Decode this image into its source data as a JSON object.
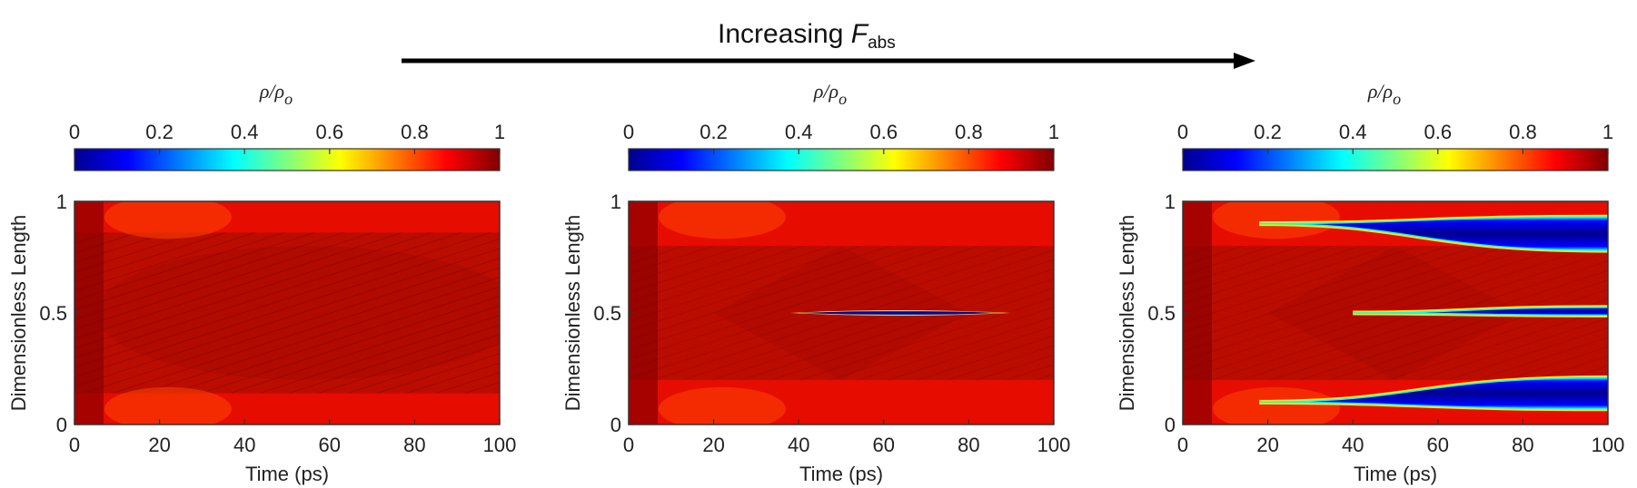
{
  "header": {
    "text": "Increasing ",
    "symbol": "F",
    "subscript": "abs"
  },
  "colorbar": {
    "label_main": "ρ/ρ",
    "label_sub": "o",
    "ticks": [
      "0",
      "0.2",
      "0.4",
      "0.6",
      "0.8",
      "1"
    ],
    "range": [
      0,
      1
    ],
    "stops": [
      "#00008f",
      "#0000ff",
      "#00ffff",
      "#ffff00",
      "#ff0000",
      "#800000"
    ]
  },
  "chart_data": [
    {
      "type": "heatmap",
      "xlabel": "Time (ps)",
      "ylabel": "Dimensionless Length",
      "xlim": [
        0,
        100
      ],
      "ylim": [
        0,
        1
      ],
      "xticks": [
        "0",
        "20",
        "40",
        "60",
        "80",
        "100"
      ],
      "yticks": [
        "0",
        "0.5",
        "1"
      ],
      "low_density_regions": []
    },
    {
      "type": "heatmap",
      "xlabel": "Time (ps)",
      "ylabel": "Dimensionless Length",
      "xlim": [
        0,
        100
      ],
      "ylim": [
        0,
        1
      ],
      "xticks": [
        "0",
        "20",
        "40",
        "60",
        "80",
        "100"
      ],
      "yticks": [
        "0",
        "0.5",
        "1"
      ],
      "low_density_regions": [
        {
          "y_center": 0.5,
          "t_start": 38,
          "t_end": 90,
          "max_half_width": 0.012
        }
      ]
    },
    {
      "type": "heatmap",
      "xlabel": "Time (ps)",
      "ylabel": "Dimensionless Length",
      "xlim": [
        0,
        100
      ],
      "ylim": [
        0,
        1
      ],
      "xticks": [
        "0",
        "20",
        "40",
        "60",
        "80",
        "100"
      ],
      "yticks": [
        "0",
        "0.5",
        "1"
      ],
      "low_density_regions": [
        {
          "y_top_start": 0.9,
          "y_top_end": 0.93,
          "y_bottom_start": 0.9,
          "y_bottom_end": 0.78,
          "t_start": 18,
          "t_end": 100
        },
        {
          "y_top_start": 0.5,
          "y_top_end": 0.525,
          "y_bottom_start": 0.5,
          "y_bottom_end": 0.49,
          "t_start": 40,
          "t_end": 100
        },
        {
          "y_top_start": 0.1,
          "y_top_end": 0.21,
          "y_bottom_start": 0.1,
          "y_bottom_end": 0.07,
          "t_start": 18,
          "t_end": 100
        }
      ]
    }
  ]
}
